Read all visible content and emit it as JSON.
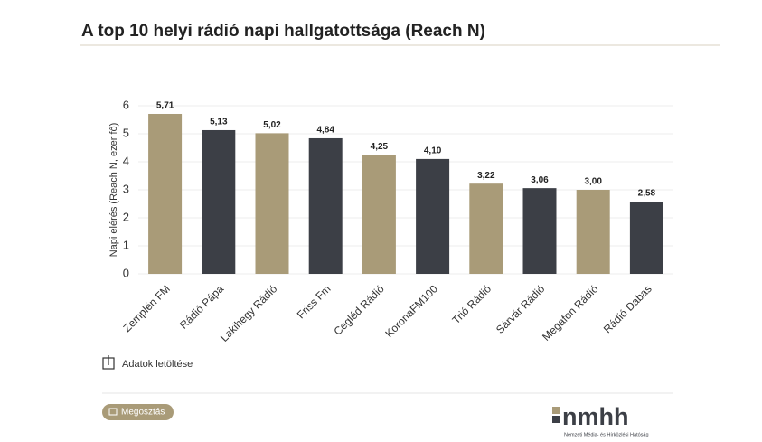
{
  "chart_data": {
    "type": "bar",
    "title": "A top 10 helyi rádió napi hallgatottsága (Reach N)",
    "y_label": "Napi elérés (Reach N, ezer fő)",
    "categories": [
      "Zemplén FM",
      "Rádió Pápa",
      "Lakihegy Rádió",
      "Friss Fm",
      "Cegléd Rádió",
      "KoronaFM100",
      "Trió Rádió",
      "Sárvár Rádió",
      "Megafon Rádió",
      "Rádió Dabas"
    ],
    "values": [
      5.71,
      5.13,
      5.02,
      4.84,
      4.25,
      4.1,
      3.22,
      3.06,
      3.0,
      2.58
    ],
    "value_labels": [
      "5,71",
      "5,13",
      "5,02",
      "4,84",
      "4,25",
      "4,10",
      "3,22",
      "3,06",
      "3,00",
      "2,58"
    ],
    "colors": [
      "#a99b78",
      "#3c3f46",
      "#a99b78",
      "#3c3f46",
      "#a99b78",
      "#3c3f46",
      "#a99b78",
      "#3c3f46",
      "#a99b78",
      "#3c3f46"
    ],
    "ylim": [
      0,
      6
    ],
    "yticks": [
      0,
      1,
      2,
      3,
      4,
      5,
      6
    ],
    "grid": true
  },
  "ui": {
    "download": "Adatok letöltése",
    "share": "Megosztás",
    "logo": "nmhh",
    "logo_caption": "Nemzeti Média- és Hírközlési Hatóság"
  }
}
